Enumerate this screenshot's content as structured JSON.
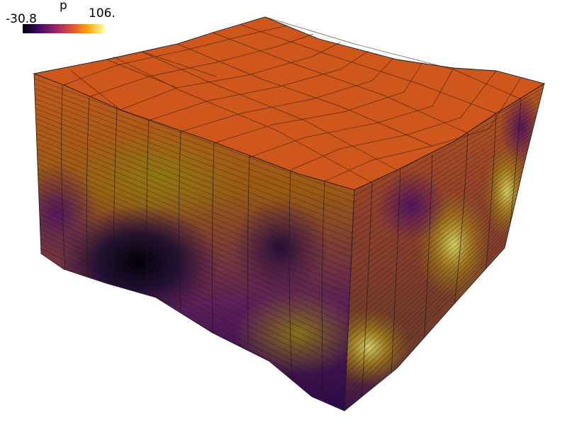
{
  "colorbar": {
    "title": "p",
    "min_label": "-30.8",
    "max_label": "106.",
    "range": [
      -30.8,
      106
    ],
    "colormap": "inferno",
    "stops": [
      "#000004",
      "#420a68",
      "#932667",
      "#dd513a",
      "#fca50a",
      "#fcffa4"
    ]
  },
  "scene": {
    "background": "#ffffff",
    "top_face_color": "#cf571c",
    "edge_color": "#1a1a1a"
  }
}
